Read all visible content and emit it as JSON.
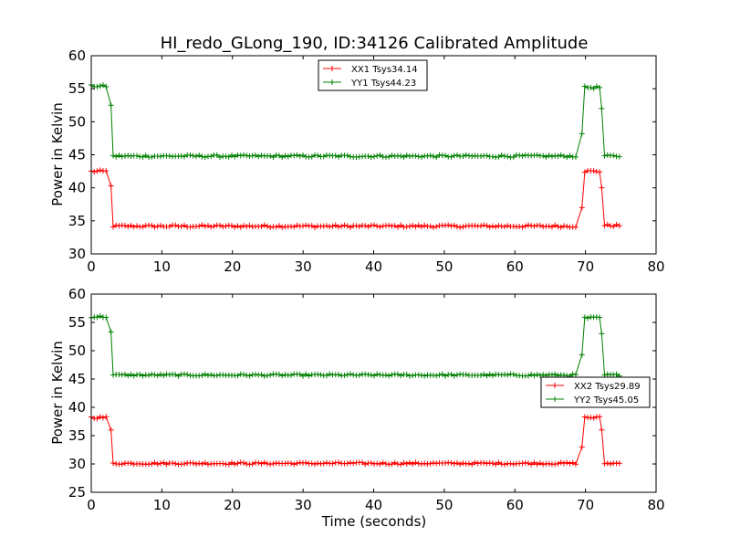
{
  "chart_data": [
    {
      "type": "line",
      "title": "HI_redo_GLong_190, ID:34126 Calibrated Amplitude",
      "xlabel": "",
      "ylabel": "Power in Kelvin",
      "xlim": [
        0,
        80
      ],
      "ylim": [
        30,
        60
      ],
      "xticks": [
        "0",
        "10",
        "20",
        "30",
        "40",
        "50",
        "60",
        "70",
        "80"
      ],
      "yticks": [
        "30",
        "35",
        "40",
        "45",
        "50",
        "55",
        "60"
      ],
      "legend_position": "upper-center",
      "series": [
        {
          "name": "XX1 Tsys34.14",
          "color": "#ff0000",
          "marker": "plus",
          "segments": [
            {
              "x_start": 0,
              "x_end": 2.4,
              "level": 42.5
            },
            {
              "x": 2.8,
              "y": 40.3
            },
            {
              "x_start": 3.1,
              "x_end": 69.0,
              "level": 34.2
            },
            {
              "x": 69.5,
              "y": 37.0
            },
            {
              "x_start": 69.9,
              "x_end": 72.0,
              "level": 42.5
            },
            {
              "x": 72.3,
              "y": 40.0
            },
            {
              "x_start": 72.7,
              "x_end": 75.2,
              "level": 34.3
            }
          ]
        },
        {
          "name": "YY1 Tsys44.23",
          "color": "#008000",
          "marker": "plus",
          "segments": [
            {
              "x_start": 0,
              "x_end": 2.4,
              "level": 55.4
            },
            {
              "x": 2.8,
              "y": 52.5
            },
            {
              "x_start": 3.1,
              "x_end": 69.0,
              "level": 44.8
            },
            {
              "x": 69.5,
              "y": 48.2
            },
            {
              "x_start": 69.9,
              "x_end": 72.0,
              "level": 55.2
            },
            {
              "x": 72.3,
              "y": 52.0
            },
            {
              "x_start": 72.7,
              "x_end": 75.2,
              "level": 44.8
            }
          ]
        }
      ]
    },
    {
      "type": "line",
      "title": "",
      "xlabel": "Time (seconds)",
      "ylabel": "Power in Kelvin",
      "xlim": [
        0,
        80
      ],
      "ylim": [
        25,
        60
      ],
      "xticks": [
        "0",
        "10",
        "20",
        "30",
        "40",
        "50",
        "60",
        "70",
        "80"
      ],
      "yticks": [
        "25",
        "30",
        "35",
        "40",
        "45",
        "50",
        "55",
        "60"
      ],
      "legend_position": "center-right",
      "series": [
        {
          "name": "XX2 Tsys29.89",
          "color": "#ff0000",
          "marker": "plus",
          "segments": [
            {
              "x_start": 0,
              "x_end": 2.4,
              "level": 38.2
            },
            {
              "x": 2.8,
              "y": 36.0
            },
            {
              "x_start": 3.1,
              "x_end": 69.0,
              "level": 30.1
            },
            {
              "x": 69.5,
              "y": 33.0
            },
            {
              "x_start": 69.9,
              "x_end": 72.0,
              "level": 38.2
            },
            {
              "x": 72.3,
              "y": 36.0
            },
            {
              "x_start": 72.7,
              "x_end": 75.2,
              "level": 30.1
            }
          ]
        },
        {
          "name": "YY2 Tsys45.05",
          "color": "#008000",
          "marker": "plus",
          "segments": [
            {
              "x_start": 0,
              "x_end": 2.4,
              "level": 56.0
            },
            {
              "x": 2.8,
              "y": 53.3
            },
            {
              "x_start": 3.1,
              "x_end": 69.0,
              "level": 45.7
            },
            {
              "x": 69.5,
              "y": 49.3
            },
            {
              "x_start": 69.9,
              "x_end": 72.0,
              "level": 55.8
            },
            {
              "x": 72.3,
              "y": 53.0
            },
            {
              "x_start": 72.7,
              "x_end": 75.2,
              "level": 45.7
            }
          ]
        }
      ]
    }
  ]
}
